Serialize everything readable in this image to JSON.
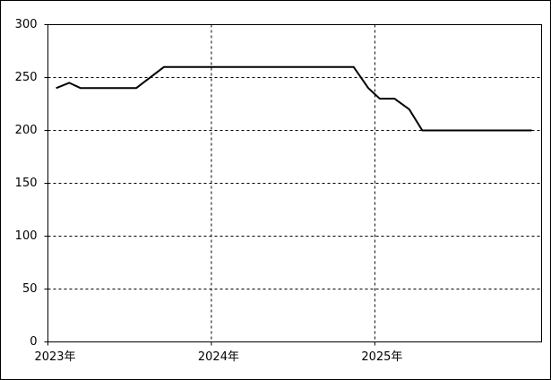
{
  "chart_data": {
    "type": "line",
    "x": [
      2023.05,
      2023.13,
      2023.2,
      2023.54,
      2023.71,
      2024.87,
      2024.96,
      2025.03,
      2025.12,
      2025.21,
      2025.29,
      2025.96
    ],
    "values": [
      240,
      245,
      240,
      240,
      260,
      260,
      240,
      230,
      230,
      220,
      200,
      200
    ],
    "color": "#000000",
    "xlim": [
      2023,
      2026.02
    ],
    "xticks": [
      {
        "value": 2023,
        "label": "2023年"
      },
      {
        "value": 2024,
        "label": "2024年"
      },
      {
        "value": 2025,
        "label": "2025年"
      }
    ],
    "ylim": [
      0,
      300
    ],
    "yticks": [
      0,
      50,
      100,
      150,
      200,
      250,
      300
    ],
    "grid": true
  }
}
